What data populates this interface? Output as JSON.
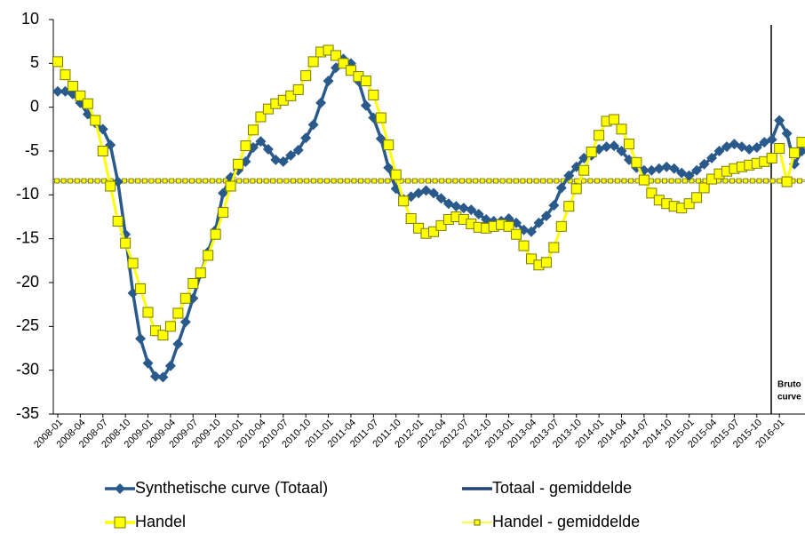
{
  "chart_data": {
    "type": "line",
    "categories": [
      "2008-01",
      null,
      null,
      "2008-04",
      null,
      null,
      "2008-07",
      null,
      null,
      "2008-10",
      null,
      null,
      "2009-01",
      null,
      null,
      "2009-04",
      null,
      null,
      "2009-07",
      null,
      null,
      "2009-10",
      null,
      null,
      "2010-01",
      null,
      null,
      "2010-04",
      null,
      null,
      "2010-07",
      null,
      null,
      "2010-10",
      null,
      null,
      "2011-01",
      null,
      null,
      "2011-04",
      null,
      null,
      "2011-07",
      null,
      null,
      "2011-10",
      null,
      null,
      "2012-01",
      null,
      null,
      "2012-04",
      null,
      null,
      "2012-07",
      null,
      null,
      "2012-10",
      null,
      null,
      "2013-01",
      null,
      null,
      "2013-04",
      null,
      null,
      "2013-07",
      null,
      null,
      "2013-10",
      null,
      null,
      "2014-01",
      null,
      null,
      "2014-04",
      null,
      null,
      "2014-07",
      null,
      null,
      "2014-10",
      null,
      null,
      "2015-01",
      null,
      null,
      "2015-04",
      null,
      null,
      "2015-07",
      null,
      null,
      "2015-10",
      null,
      null,
      "2016-01",
      null,
      null,
      null
    ],
    "series": [
      {
        "name": "Synthetische curve (Totaal)",
        "color": "#2a5a8c",
        "marker": "diamond",
        "values": [
          1.8,
          1.8,
          1.5,
          0.5,
          -0.8,
          -1.8,
          -2.5,
          -4.3,
          -8.5,
          -14.5,
          -21.2,
          -26.4,
          -29.2,
          -30.7,
          -30.8,
          -29.5,
          -27,
          -24.5,
          -21.8,
          -19,
          -16.5,
          -14,
          -9.8,
          -8,
          -7.2,
          -6.2,
          -4.6,
          -3.9,
          -4.8,
          -6,
          -6.2,
          -5.5,
          -4.9,
          -3.5,
          -2,
          0.5,
          3,
          4.5,
          5.5,
          5,
          3,
          0.2,
          -1.2,
          -3.6,
          -6.9,
          -9.3,
          -10.5,
          -10.2,
          -9.8,
          -9.5,
          -9.8,
          -10.4,
          -11,
          -11.3,
          -11.5,
          -11.7,
          -12.2,
          -12.8,
          -13,
          -13,
          -12.7,
          -13.2,
          -14,
          -14.2,
          -13.2,
          -12.4,
          -11.2,
          -9.2,
          -7.8,
          -6.8,
          -5.8,
          -5.5,
          -4.8,
          -4.5,
          -4.4,
          -5,
          -6,
          -6.9,
          -7.2,
          -7.2,
          -7,
          -6.8,
          -7,
          -7.5,
          -7.8,
          -7.2,
          -6.5,
          -5.8,
          -5,
          -4.5,
          -4.2,
          -4.5,
          -4.8,
          -4.6,
          -4,
          -3.7,
          -1.5,
          -3,
          -6.5,
          -5
        ]
      },
      {
        "name": "Totaal - gemiddelde",
        "color": "#1f4270",
        "marker": "none",
        "value": -8.4
      },
      {
        "name": "Handel",
        "color": "#ffff00",
        "marker": "square",
        "values": [
          5.2,
          3.7,
          2.4,
          1.3,
          0.4,
          -1.5,
          -5,
          -9,
          -13,
          -15.5,
          -17.8,
          -20.7,
          -23.4,
          -25.5,
          -26,
          -25,
          -23.5,
          -21.8,
          -20.1,
          -18.9,
          -16.9,
          -14.5,
          -12,
          -9,
          -6.5,
          -4.4,
          -2.6,
          -1.1,
          -0.2,
          0.4,
          0.8,
          1.3,
          2,
          3.6,
          5.2,
          6.3,
          6.5,
          5.9,
          5,
          4.2,
          3.5,
          3,
          1.4,
          -1.2,
          -4.3,
          -7.7,
          -10.7,
          -12.7,
          -13.8,
          -14.4,
          -14.2,
          -13.5,
          -12.8,
          -12.5,
          -12.8,
          -13.3,
          -13.7,
          -13.8,
          -13.6,
          -13.4,
          -13.6,
          -14.5,
          -15.8,
          -17.3,
          -18,
          -17.7,
          -16,
          -13.6,
          -11.3,
          -9.3,
          -7.2,
          -5.1,
          -3.2,
          -1.6,
          -1.4,
          -2.5,
          -4.2,
          -6.3,
          -8.3,
          -9.8,
          -10.6,
          -11,
          -11.3,
          -11.5,
          -11,
          -10.3,
          -9.2,
          -8.2,
          -7.6,
          -7.3,
          -7,
          -6.8,
          -6.6,
          -6.4,
          -6.2,
          -5.8,
          -4.7,
          -8.5,
          -5.2,
          -4
        ]
      },
      {
        "name": "Handel - gemiddelde",
        "color": "#ffff00",
        "marker": "small-square",
        "value": -8.4
      }
    ],
    "ylim": [
      -35,
      10
    ],
    "yticks": [
      10,
      5,
      0,
      -5,
      -10,
      -15,
      -20,
      -25,
      -30,
      -35
    ],
    "annotation": [
      "Bruto",
      "curve"
    ]
  }
}
